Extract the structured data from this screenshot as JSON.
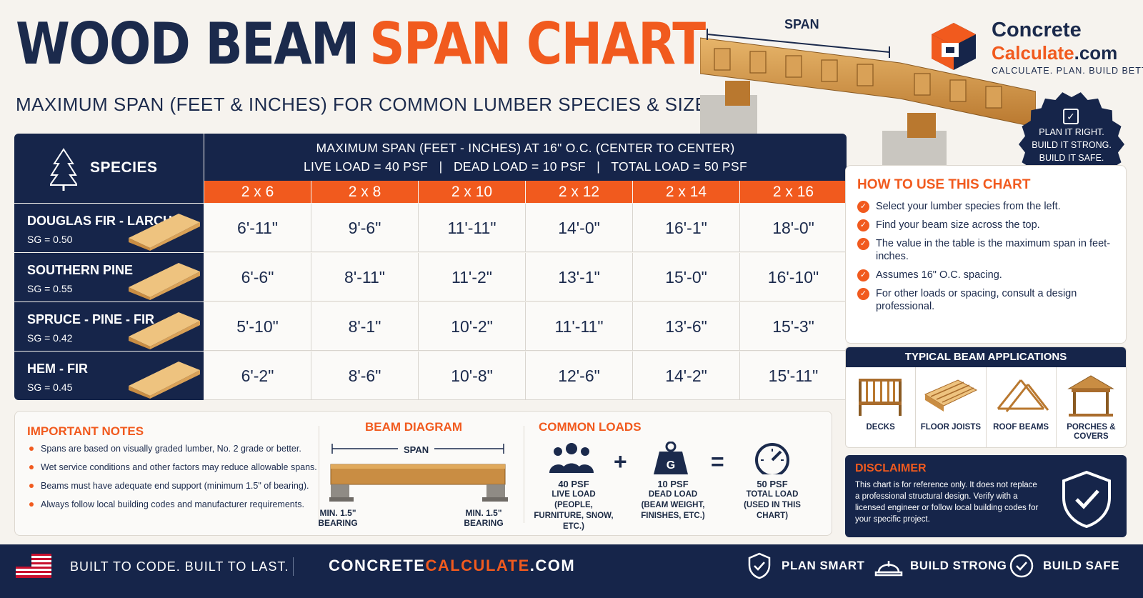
{
  "header": {
    "title_part1": "WOOD BEAM",
    "title_part2": "SPAN CHART",
    "subtitle": "MAXIMUM SPAN (FEET & INCHES) FOR COMMON LUMBER SPECIES & SIZES",
    "hero_span_label": "SPAN"
  },
  "brand": {
    "name_line1": "Concrete",
    "name_line2": "Calculate",
    "name_suffix": ".com",
    "tagline": "CALCULATE. PLAN. BUILD BETTER."
  },
  "badge": {
    "line1": "PLAN IT RIGHT.",
    "line2": "BUILD IT STRONG.",
    "line3": "BUILD IT SAFE."
  },
  "table": {
    "species_header": "SPECIES",
    "span_header_line1": "MAXIMUM SPAN (FEET - INCHES) AT 16\" O.C. (CENTER TO CENTER)",
    "span_header_line2": "LIVE LOAD = 40 PSF   |   DEAD LOAD = 10 PSF   |   TOTAL LOAD = 50 PSF",
    "sizes": [
      "2 x 6",
      "2 x 8",
      "2 x 10",
      "2 x 12",
      "2 x 14",
      "2 x 16"
    ],
    "rows": [
      {
        "species": "DOUGLAS FIR - LARCH",
        "sg": "SG = 0.50",
        "values": [
          "6'-11\"",
          "9'-6\"",
          "11'-11\"",
          "14'-0\"",
          "16'-1\"",
          "18'-0\""
        ]
      },
      {
        "species": "SOUTHERN PINE",
        "sg": "SG = 0.55",
        "values": [
          "6'-6\"",
          "8'-11\"",
          "11'-2\"",
          "13'-1\"",
          "15'-0\"",
          "16'-10\""
        ]
      },
      {
        "species": "SPRUCE - PINE - FIR",
        "sg": "SG = 0.42",
        "values": [
          "5'-10\"",
          "8'-1\"",
          "10'-2\"",
          "11'-11\"",
          "13'-6\"",
          "15'-3\""
        ]
      },
      {
        "species": "HEM - FIR",
        "sg": "SG = 0.45",
        "values": [
          "6'-2\"",
          "8'-6\"",
          "10'-8\"",
          "12'-6\"",
          "14'-2\"",
          "15'-11\""
        ]
      }
    ]
  },
  "howto": {
    "title": "HOW TO USE THIS CHART",
    "items": [
      "Select your lumber species from the left.",
      "Find your beam size across the top.",
      "The value in the table is the maximum span in feet-inches.",
      "Assumes 16\" O.C. spacing.",
      "For other loads or spacing, consult a design professional."
    ]
  },
  "applications": {
    "title": "TYPICAL BEAM APPLICATIONS",
    "items": [
      "DECKS",
      "FLOOR JOISTS",
      "ROOF BEAMS",
      "PORCHES & COVERS"
    ]
  },
  "disclaimer": {
    "title": "DISCLAIMER",
    "text": "This chart is for reference only. It does not replace a professional structural design. Verify with a licensed engineer or follow local building codes for your specific project."
  },
  "notes": {
    "title": "IMPORTANT NOTES",
    "items": [
      "Spans are based on visually graded lumber, No. 2 grade or better.",
      "Wet service conditions and other factors may reduce allowable spans.",
      "Beams must have adequate end support (minimum 1.5\" of bearing).",
      "Always follow local building codes and manufacturer requirements."
    ]
  },
  "diagram": {
    "title": "BEAM DIAGRAM",
    "span_label": "SPAN",
    "bearing_left": "MIN. 1.5\" BEARING",
    "bearing_right": "MIN. 1.5\" BEARING"
  },
  "loads": {
    "title": "COMMON LOADS",
    "plus": "+",
    "equals": "=",
    "weight_letter": "G",
    "live": {
      "value": "40 PSF",
      "label": "LIVE LOAD",
      "desc": "(PEOPLE, FURNITURE, SNOW, ETC.)"
    },
    "dead": {
      "value": "10 PSF",
      "label": "DEAD LOAD",
      "desc": "(BEAM WEIGHT, FINISHES, ETC.)"
    },
    "total": {
      "value": "50 PSF",
      "label": "TOTAL LOAD",
      "desc": "(USED IN THIS CHART)"
    }
  },
  "footer": {
    "slogan": "BUILT TO CODE. BUILT TO LAST.",
    "url_part1": "CONCRETE",
    "url_part2": "CALCULATE",
    "url_part3": ".COM",
    "item1": "PLAN SMART",
    "item2": "BUILD STRONG",
    "item3": "BUILD SAFE"
  },
  "colors": {
    "navy": "#16254a",
    "orange": "#f15a1e",
    "background": "#f6f3ee"
  }
}
